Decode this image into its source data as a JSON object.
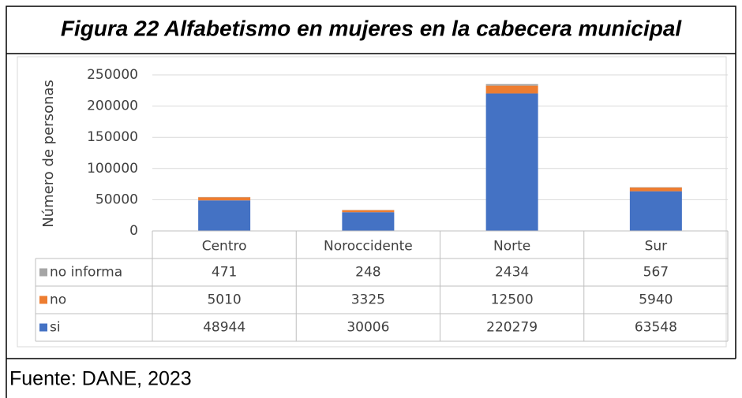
{
  "chart_data": {
    "type": "bar",
    "stacked": true,
    "title": "Figura 22 Alfabetismo en mujeres en la cabecera municipal",
    "y_label": "Número de personas",
    "source": "Fuente: DANE, 2023",
    "categories": [
      "Centro",
      "Noroccidente",
      "Norte",
      "Sur"
    ],
    "series": [
      {
        "name": "no informa",
        "color": "#a5a5a5",
        "values": [
          471,
          248,
          2434,
          567
        ]
      },
      {
        "name": "no",
        "color": "#ed7d31",
        "values": [
          5010,
          3325,
          12500,
          5940
        ]
      },
      {
        "name": "si",
        "color": "#4472c4",
        "values": [
          48944,
          30006,
          220279,
          63548
        ]
      }
    ],
    "ylim": [
      0,
      250000
    ],
    "yticks": [
      0,
      50000,
      100000,
      150000,
      200000,
      250000
    ],
    "grid": true
  }
}
